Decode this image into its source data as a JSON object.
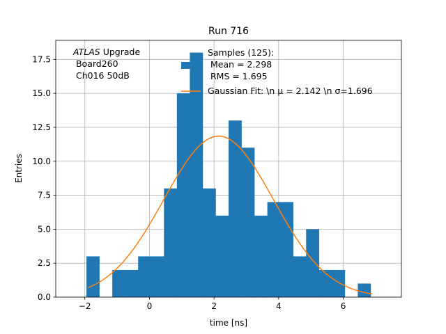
{
  "chart_data": {
    "type": "bar",
    "title": "Run 716",
    "xlabel": "time [ns]",
    "ylabel": "Entries",
    "xlim": [
      -2.9,
      7.8
    ],
    "ylim": [
      0,
      18.9
    ],
    "grid": true,
    "xticks": [
      -2,
      0,
      2,
      4,
      6
    ],
    "xtick_labels": [
      "−2",
      "0",
      "2",
      "4",
      "6"
    ],
    "yticks": [
      0,
      2.5,
      5,
      7.5,
      10,
      12.5,
      15,
      17.5
    ],
    "ytick_labels": [
      "0.0",
      "2.5",
      "5.0",
      "7.5",
      "10.0",
      "12.5",
      "15.0",
      "17.5"
    ],
    "histogram": {
      "name": "Samples (125):",
      "color": "#1f77b4",
      "bin_start": -1.95,
      "bin_width": 0.4,
      "counts": [
        3,
        0,
        2,
        2,
        3,
        3,
        8,
        15,
        18,
        8,
        6,
        13,
        11,
        6,
        7,
        7,
        3,
        5,
        2,
        2,
        0,
        1
      ]
    },
    "fit": {
      "name": "Gaussian Fit: \\n $\\mu$ = 2.142 \\n $\\sigma$=1.696",
      "legend_label": "Gaussian Fit: \\n μ = 2.142 \\n σ=1.696",
      "color": "#ff7f0e",
      "mu": 2.142,
      "sigma": 1.696,
      "amplitude": 11.85,
      "x_range": [
        -1.9,
        6.9
      ]
    },
    "legend": {
      "placement": "top-center",
      "samples_lines": [
        "Samples (125):",
        " Mean = 2.298",
        " RMS = 1.695"
      ],
      "fit_label": "Gaussian Fit: \\n μ = 2.142 \\n σ=1.696"
    },
    "annotation": {
      "italic": "ATLAS",
      "line1_rest": " Upgrade",
      "line2": " Board260",
      "line3": " Ch016 50dB"
    }
  }
}
